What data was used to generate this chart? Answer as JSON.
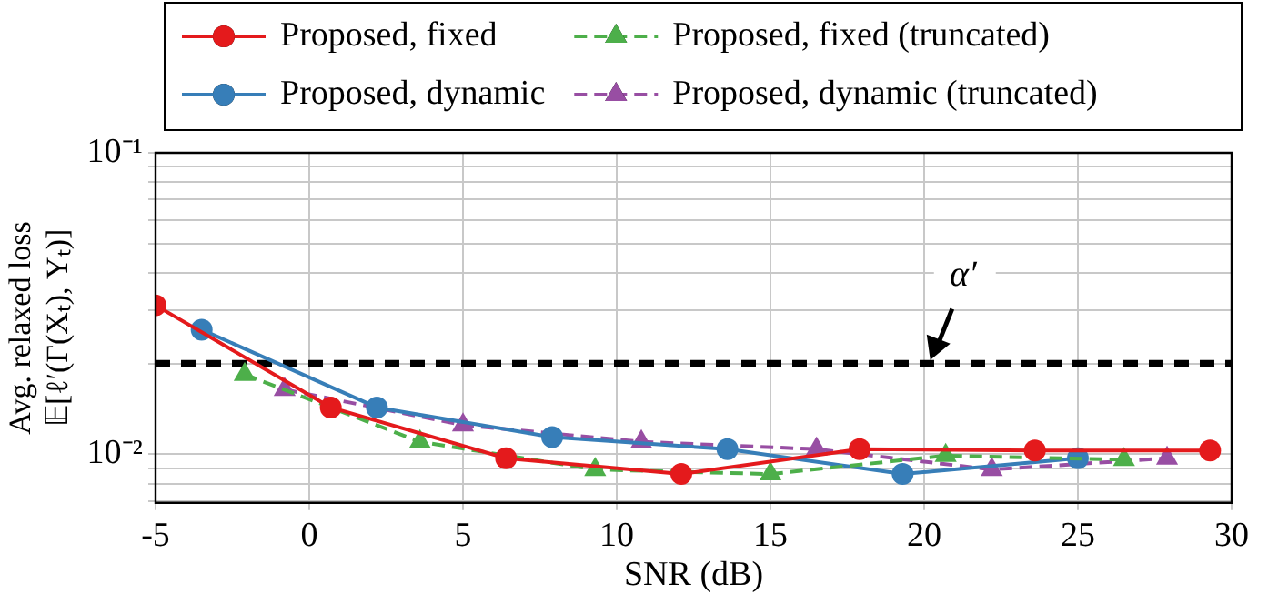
{
  "chart_data": {
    "type": "line",
    "xlabel": "SNR (dB)",
    "ylabel": "Avg. relaxed loss\n𝔼[ℓ′(Γ(Xₜ), Yₜ)]",
    "log": "y",
    "xlim": [
      -5,
      30
    ],
    "xticks": [
      -5,
      0,
      5,
      10,
      15,
      20,
      25,
      30
    ],
    "ylim": [
      0.0069,
      0.1
    ],
    "yticks": [
      {
        "value": 0.007,
        "label": null
      },
      {
        "value": 0.008,
        "label": null
      },
      {
        "value": 0.009,
        "label": null
      },
      {
        "value": 0.01,
        "label": "10⁻²"
      },
      {
        "value": 0.02,
        "label": null
      },
      {
        "value": 0.03,
        "label": null
      },
      {
        "value": 0.04,
        "label": null
      },
      {
        "value": 0.05,
        "label": null
      },
      {
        "value": 0.06,
        "label": null
      },
      {
        "value": 0.07,
        "label": null
      },
      {
        "value": 0.08,
        "label": null
      },
      {
        "value": 0.09,
        "label": null
      },
      {
        "value": 0.1,
        "label": "10⁻¹"
      }
    ],
    "grid": true,
    "legend": "top",
    "ref_lines": [
      {
        "axis": "y",
        "value": 0.02,
        "label": "α′",
        "color": "#000000",
        "line_style": "dashed"
      }
    ],
    "series": [
      {
        "name": "Proposed, fixed",
        "color": "#e41a1c",
        "marker": "circle",
        "line_style": "solid",
        "x": [
          -5,
          0.7,
          6.4,
          12.1,
          17.9,
          23.6,
          29.3
        ],
        "values": [
          0.0312,
          0.0143,
          0.0097,
          0.0086,
          0.0104,
          0.0103,
          0.0103
        ]
      },
      {
        "name": "Proposed, fixed (truncated)",
        "color": "#4daf4a",
        "marker": "triangle",
        "line_style": "dashed",
        "x": [
          -2.1,
          3.6,
          9.3,
          15.0,
          20.7,
          26.5
        ],
        "values": [
          0.0184,
          0.011,
          0.0089,
          0.0086,
          0.0099,
          0.0096
        ]
      },
      {
        "name": "Proposed, dynamic",
        "color": "#377eb8",
        "marker": "circle",
        "line_style": "solid",
        "x": [
          -3.5,
          2.2,
          7.9,
          13.6,
          19.3,
          25.0
        ],
        "values": [
          0.0259,
          0.0143,
          0.0114,
          0.0104,
          0.0086,
          0.0097
        ]
      },
      {
        "name": "Proposed, dynamic (truncated)",
        "color": "#984ea3",
        "marker": "triangle",
        "line_style": "dashed",
        "x": [
          -0.8,
          5.0,
          10.8,
          16.5,
          22.2,
          27.9
        ],
        "values": [
          0.0164,
          0.0125,
          0.011,
          0.0104,
          0.0089,
          0.0097
        ]
      }
    ]
  }
}
